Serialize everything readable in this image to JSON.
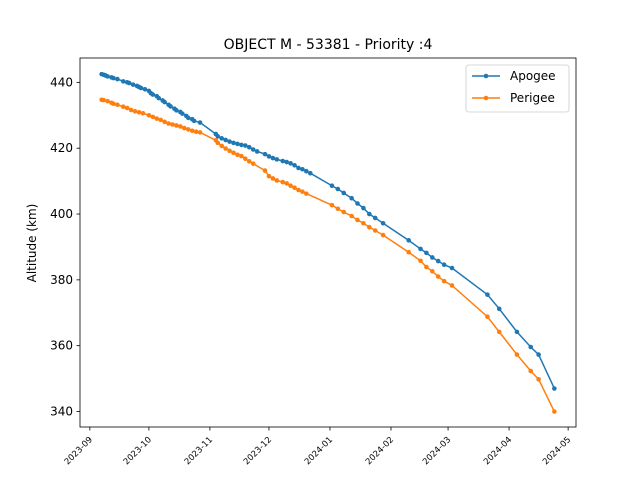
{
  "chart_data": {
    "type": "line",
    "title": "OBJECT M - 53381 - Priority :4",
    "xlabel": "",
    "ylabel": "Altitude (km)",
    "x_axis": {
      "type": "date",
      "range": [
        "2023-08-27",
        "2024-05-05"
      ],
      "ticks": [
        "2023-09-01",
        "2023-10-01",
        "2023-11-01",
        "2023-12-01",
        "2024-01-01",
        "2024-02-01",
        "2024-03-01",
        "2024-04-01",
        "2024-05-01"
      ],
      "tick_labels": [
        "2023-09",
        "2023-10",
        "2023-11",
        "2023-12",
        "2024-01",
        "2024-02",
        "2024-03",
        "2024-04",
        "2024-05"
      ]
    },
    "y_axis": {
      "range": [
        335.3,
        447.4
      ],
      "ticks": [
        340,
        360,
        380,
        400,
        420,
        440
      ],
      "tick_labels": [
        "340",
        "360",
        "380",
        "400",
        "420",
        "440"
      ]
    },
    "grid": false,
    "legend": {
      "placement": "upper-right"
    },
    "series": [
      {
        "name": "Apogee",
        "color": "#1f77b4",
        "marker": "circle",
        "points": [
          [
            "2023-09-07",
            442.5
          ],
          [
            "2023-09-08",
            442.3
          ],
          [
            "2023-09-09",
            442.1
          ],
          [
            "2023-09-10",
            441.8
          ],
          [
            "2023-09-12",
            441.5
          ],
          [
            "2023-09-13",
            441.3
          ],
          [
            "2023-09-15",
            441.0
          ],
          [
            "2023-09-18",
            440.3
          ],
          [
            "2023-09-20",
            440.0
          ],
          [
            "2023-09-21",
            439.8
          ],
          [
            "2023-09-23",
            439.3
          ],
          [
            "2023-09-25",
            438.9
          ],
          [
            "2023-09-26",
            438.6
          ],
          [
            "2023-09-27",
            438.3
          ],
          [
            "2023-09-29",
            437.9
          ],
          [
            "2023-10-01",
            437.4
          ],
          [
            "2023-10-02",
            436.7
          ],
          [
            "2023-10-03",
            436.3
          ],
          [
            "2023-10-05",
            435.8
          ],
          [
            "2023-10-06",
            435.2
          ],
          [
            "2023-10-08",
            434.5
          ],
          [
            "2023-10-09",
            434.0
          ],
          [
            "2023-10-11",
            433.2
          ],
          [
            "2023-10-12",
            432.7
          ],
          [
            "2023-10-14",
            432.0
          ],
          [
            "2023-10-15",
            431.5
          ],
          [
            "2023-10-17",
            431.0
          ],
          [
            "2023-10-18",
            430.5
          ],
          [
            "2023-10-20",
            429.8
          ],
          [
            "2023-10-21",
            429.2
          ],
          [
            "2023-10-23",
            428.8
          ],
          [
            "2023-10-24",
            428.3
          ],
          [
            "2023-10-27",
            427.8
          ],
          [
            "2023-11-04",
            424.3
          ],
          [
            "2023-11-05",
            423.6
          ],
          [
            "2023-11-07",
            423.0
          ],
          [
            "2023-11-09",
            422.5
          ],
          [
            "2023-11-11",
            422.0
          ],
          [
            "2023-11-13",
            421.6
          ],
          [
            "2023-11-15",
            421.3
          ],
          [
            "2023-11-17",
            421.0
          ],
          [
            "2023-11-19",
            420.8
          ],
          [
            "2023-11-21",
            420.3
          ],
          [
            "2023-11-23",
            419.6
          ],
          [
            "2023-11-25",
            419.0
          ],
          [
            "2023-11-29",
            418.2
          ],
          [
            "2023-12-01",
            417.5
          ],
          [
            "2023-12-03",
            417.0
          ],
          [
            "2023-12-05",
            416.6
          ],
          [
            "2023-12-08",
            416.1
          ],
          [
            "2023-12-10",
            415.8
          ],
          [
            "2023-12-12",
            415.4
          ],
          [
            "2023-12-14",
            414.8
          ],
          [
            "2023-12-16",
            414.0
          ],
          [
            "2023-12-18",
            413.6
          ],
          [
            "2023-12-20",
            413.0
          ],
          [
            "2023-12-22",
            412.4
          ],
          [
            "2024-01-02",
            408.6
          ],
          [
            "2024-01-05",
            407.6
          ],
          [
            "2024-01-08",
            406.4
          ],
          [
            "2024-01-12",
            404.8
          ],
          [
            "2024-01-15",
            403.2
          ],
          [
            "2024-01-18",
            401.8
          ],
          [
            "2024-01-21",
            400.0
          ],
          [
            "2024-01-24",
            398.8
          ],
          [
            "2024-01-28",
            397.2
          ],
          [
            "2024-02-10",
            392.0
          ],
          [
            "2024-02-16",
            389.4
          ],
          [
            "2024-02-19",
            388.2
          ],
          [
            "2024-02-22",
            386.8
          ],
          [
            "2024-02-25",
            385.7
          ],
          [
            "2024-02-28",
            384.6
          ],
          [
            "2024-03-03",
            383.6
          ],
          [
            "2024-03-21",
            375.5
          ],
          [
            "2024-03-27",
            371.2
          ],
          [
            "2024-04-05",
            364.2
          ],
          [
            "2024-04-12",
            359.6
          ],
          [
            "2024-04-16",
            357.3
          ],
          [
            "2024-04-24",
            347.0
          ]
        ]
      },
      {
        "name": "Perigee",
        "color": "#ff7f0e",
        "marker": "circle",
        "points": [
          [
            "2023-09-07",
            434.7
          ],
          [
            "2023-09-08",
            434.6
          ],
          [
            "2023-09-10",
            434.3
          ],
          [
            "2023-09-12",
            433.8
          ],
          [
            "2023-09-13",
            433.5
          ],
          [
            "2023-09-15",
            433.2
          ],
          [
            "2023-09-18",
            432.6
          ],
          [
            "2023-09-20",
            432.2
          ],
          [
            "2023-09-22",
            431.6
          ],
          [
            "2023-09-24",
            431.2
          ],
          [
            "2023-09-26",
            430.9
          ],
          [
            "2023-09-28",
            430.6
          ],
          [
            "2023-10-01",
            430.0
          ],
          [
            "2023-10-03",
            429.5
          ],
          [
            "2023-10-05",
            429.0
          ],
          [
            "2023-10-07",
            428.6
          ],
          [
            "2023-10-09",
            428.0
          ],
          [
            "2023-10-11",
            427.5
          ],
          [
            "2023-10-13",
            427.2
          ],
          [
            "2023-10-15",
            426.9
          ],
          [
            "2023-10-17",
            426.6
          ],
          [
            "2023-10-19",
            426.1
          ],
          [
            "2023-10-21",
            425.7
          ],
          [
            "2023-10-23",
            425.3
          ],
          [
            "2023-10-25",
            425.0
          ],
          [
            "2023-10-27",
            424.8
          ],
          [
            "2023-11-04",
            422.4
          ],
          [
            "2023-11-05",
            421.6
          ],
          [
            "2023-11-07",
            420.7
          ],
          [
            "2023-11-09",
            419.9
          ],
          [
            "2023-11-11",
            419.2
          ],
          [
            "2023-11-13",
            418.6
          ],
          [
            "2023-11-15",
            418.0
          ],
          [
            "2023-11-17",
            417.6
          ],
          [
            "2023-11-19",
            416.8
          ],
          [
            "2023-11-21",
            416.0
          ],
          [
            "2023-11-23",
            415.3
          ],
          [
            "2023-11-29",
            413.2
          ],
          [
            "2023-12-01",
            411.5
          ],
          [
            "2023-12-03",
            410.8
          ],
          [
            "2023-12-05",
            410.2
          ],
          [
            "2023-12-08",
            409.7
          ],
          [
            "2023-12-10",
            409.3
          ],
          [
            "2023-12-12",
            408.6
          ],
          [
            "2023-12-14",
            408.0
          ],
          [
            "2023-12-16",
            407.3
          ],
          [
            "2023-12-18",
            406.8
          ],
          [
            "2023-12-20",
            406.2
          ],
          [
            "2024-01-02",
            402.7
          ],
          [
            "2024-01-05",
            401.6
          ],
          [
            "2024-01-08",
            400.6
          ],
          [
            "2024-01-12",
            399.4
          ],
          [
            "2024-01-15",
            398.2
          ],
          [
            "2024-01-18",
            397.2
          ],
          [
            "2024-01-21",
            396.0
          ],
          [
            "2024-01-24",
            395.0
          ],
          [
            "2024-01-28",
            393.6
          ],
          [
            "2024-02-10",
            388.4
          ],
          [
            "2024-02-16",
            385.8
          ],
          [
            "2024-02-19",
            383.9
          ],
          [
            "2024-02-22",
            382.6
          ],
          [
            "2024-02-25",
            381.0
          ],
          [
            "2024-02-28",
            379.6
          ],
          [
            "2024-03-03",
            378.3
          ],
          [
            "2024-03-21",
            368.8
          ],
          [
            "2024-03-27",
            364.2
          ],
          [
            "2024-04-05",
            357.3
          ],
          [
            "2024-04-12",
            352.3
          ],
          [
            "2024-04-16",
            349.8
          ],
          [
            "2024-04-24",
            340.0
          ]
        ]
      }
    ]
  }
}
